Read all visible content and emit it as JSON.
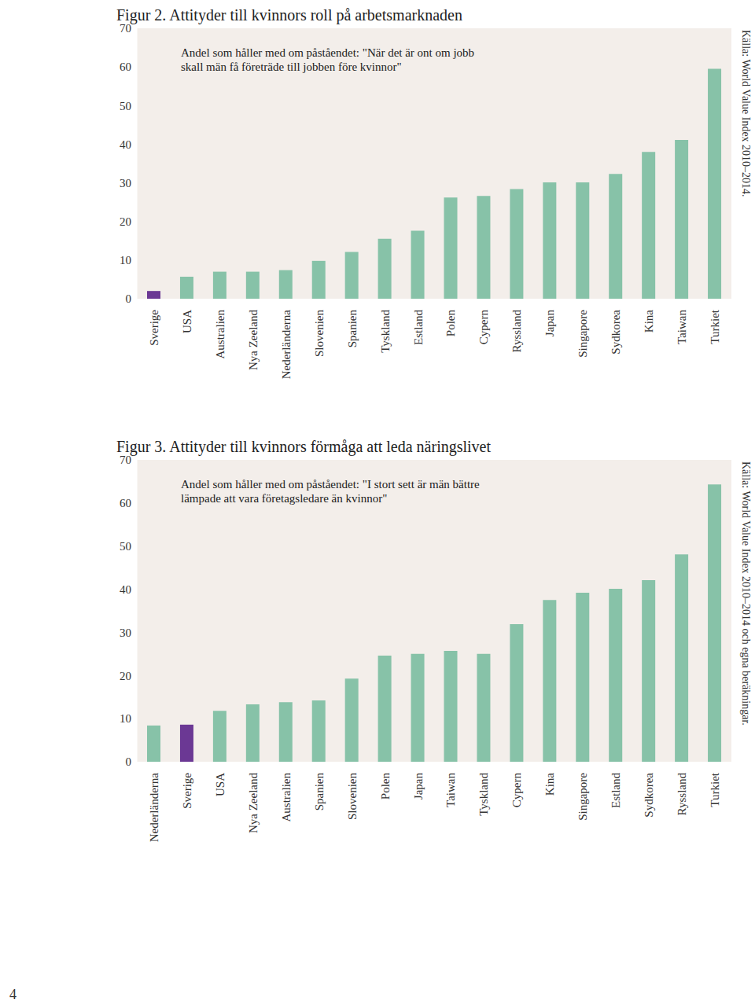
{
  "page": "4",
  "chart_data": [
    {
      "type": "bar",
      "title": "Figur 2. Attityder till kvinnors roll på arbetsmarknaden",
      "subtitle": "Andel som håller med om påståendet: \"När det är ont om jobb skall män få företräde till jobben före kvinnor\"",
      "source": "Källa: World Value Index 2010–2014.",
      "categories": [
        "Sverige",
        "USA",
        "Australien",
        "Nya Zeeland",
        "Nederländerna",
        "Slovenien",
        "Spanien",
        "Tyskland",
        "Estland",
        "Polen",
        "Cypern",
        "Ryssland",
        "Japan",
        "Singapore",
        "Sydkorea",
        "Kina",
        "Taiwan",
        "Turkiet"
      ],
      "values": [
        2.0,
        5.7,
        7.0,
        7.0,
        7.4,
        9.8,
        12.1,
        15.5,
        17.6,
        26.2,
        26.6,
        28.4,
        30.1,
        30.1,
        32.3,
        38.0,
        41.1,
        59.5
      ],
      "colors": [
        "#6b3894",
        "#87c2a8",
        "#87c2a8",
        "#87c2a8",
        "#87c2a8",
        "#87c2a8",
        "#87c2a8",
        "#87c2a8",
        "#87c2a8",
        "#87c2a8",
        "#87c2a8",
        "#87c2a8",
        "#87c2a8",
        "#87c2a8",
        "#87c2a8",
        "#87c2a8",
        "#87c2a8",
        "#87c2a8"
      ],
      "ylim": [
        0,
        70
      ],
      "yticks": [
        0,
        10,
        20,
        30,
        40,
        50,
        60,
        70
      ],
      "grid": false
    },
    {
      "type": "bar",
      "title": "Figur 3. Attityder till kvinnors förmåga att leda näringslivet",
      "subtitle": "Andel som håller med om påståendet: \"I stort sett är män bättre lämpade att vara företagsledare än kvinnor\"",
      "source": "Källa: World Value Index 2010–2014 och egna beräkningar.",
      "categories": [
        "Nederländerna",
        "Sverige",
        "USA",
        "Nya Zeeland",
        "Australien",
        "Spanien",
        "Slovenien",
        "Polen",
        "Japan",
        "Taiwan",
        "Tyskland",
        "Cypern",
        "Kina",
        "Singapore",
        "Estland",
        "Sydkorea",
        "Ryssland",
        "Turkiet"
      ],
      "values": [
        8.4,
        8.6,
        11.8,
        13.3,
        13.8,
        14.2,
        19.3,
        24.6,
        25.0,
        25.7,
        25.0,
        31.9,
        37.5,
        39.2,
        40.1,
        42.1,
        48.1,
        64.3
      ],
      "colors": [
        "#87c2a8",
        "#6b3894",
        "#87c2a8",
        "#87c2a8",
        "#87c2a8",
        "#87c2a8",
        "#87c2a8",
        "#87c2a8",
        "#87c2a8",
        "#87c2a8",
        "#87c2a8",
        "#87c2a8",
        "#87c2a8",
        "#87c2a8",
        "#87c2a8",
        "#87c2a8",
        "#87c2a8",
        "#87c2a8"
      ],
      "ylim": [
        0,
        70
      ],
      "yticks": [
        0,
        10,
        20,
        30,
        40,
        50,
        60,
        70
      ],
      "grid": false
    }
  ]
}
